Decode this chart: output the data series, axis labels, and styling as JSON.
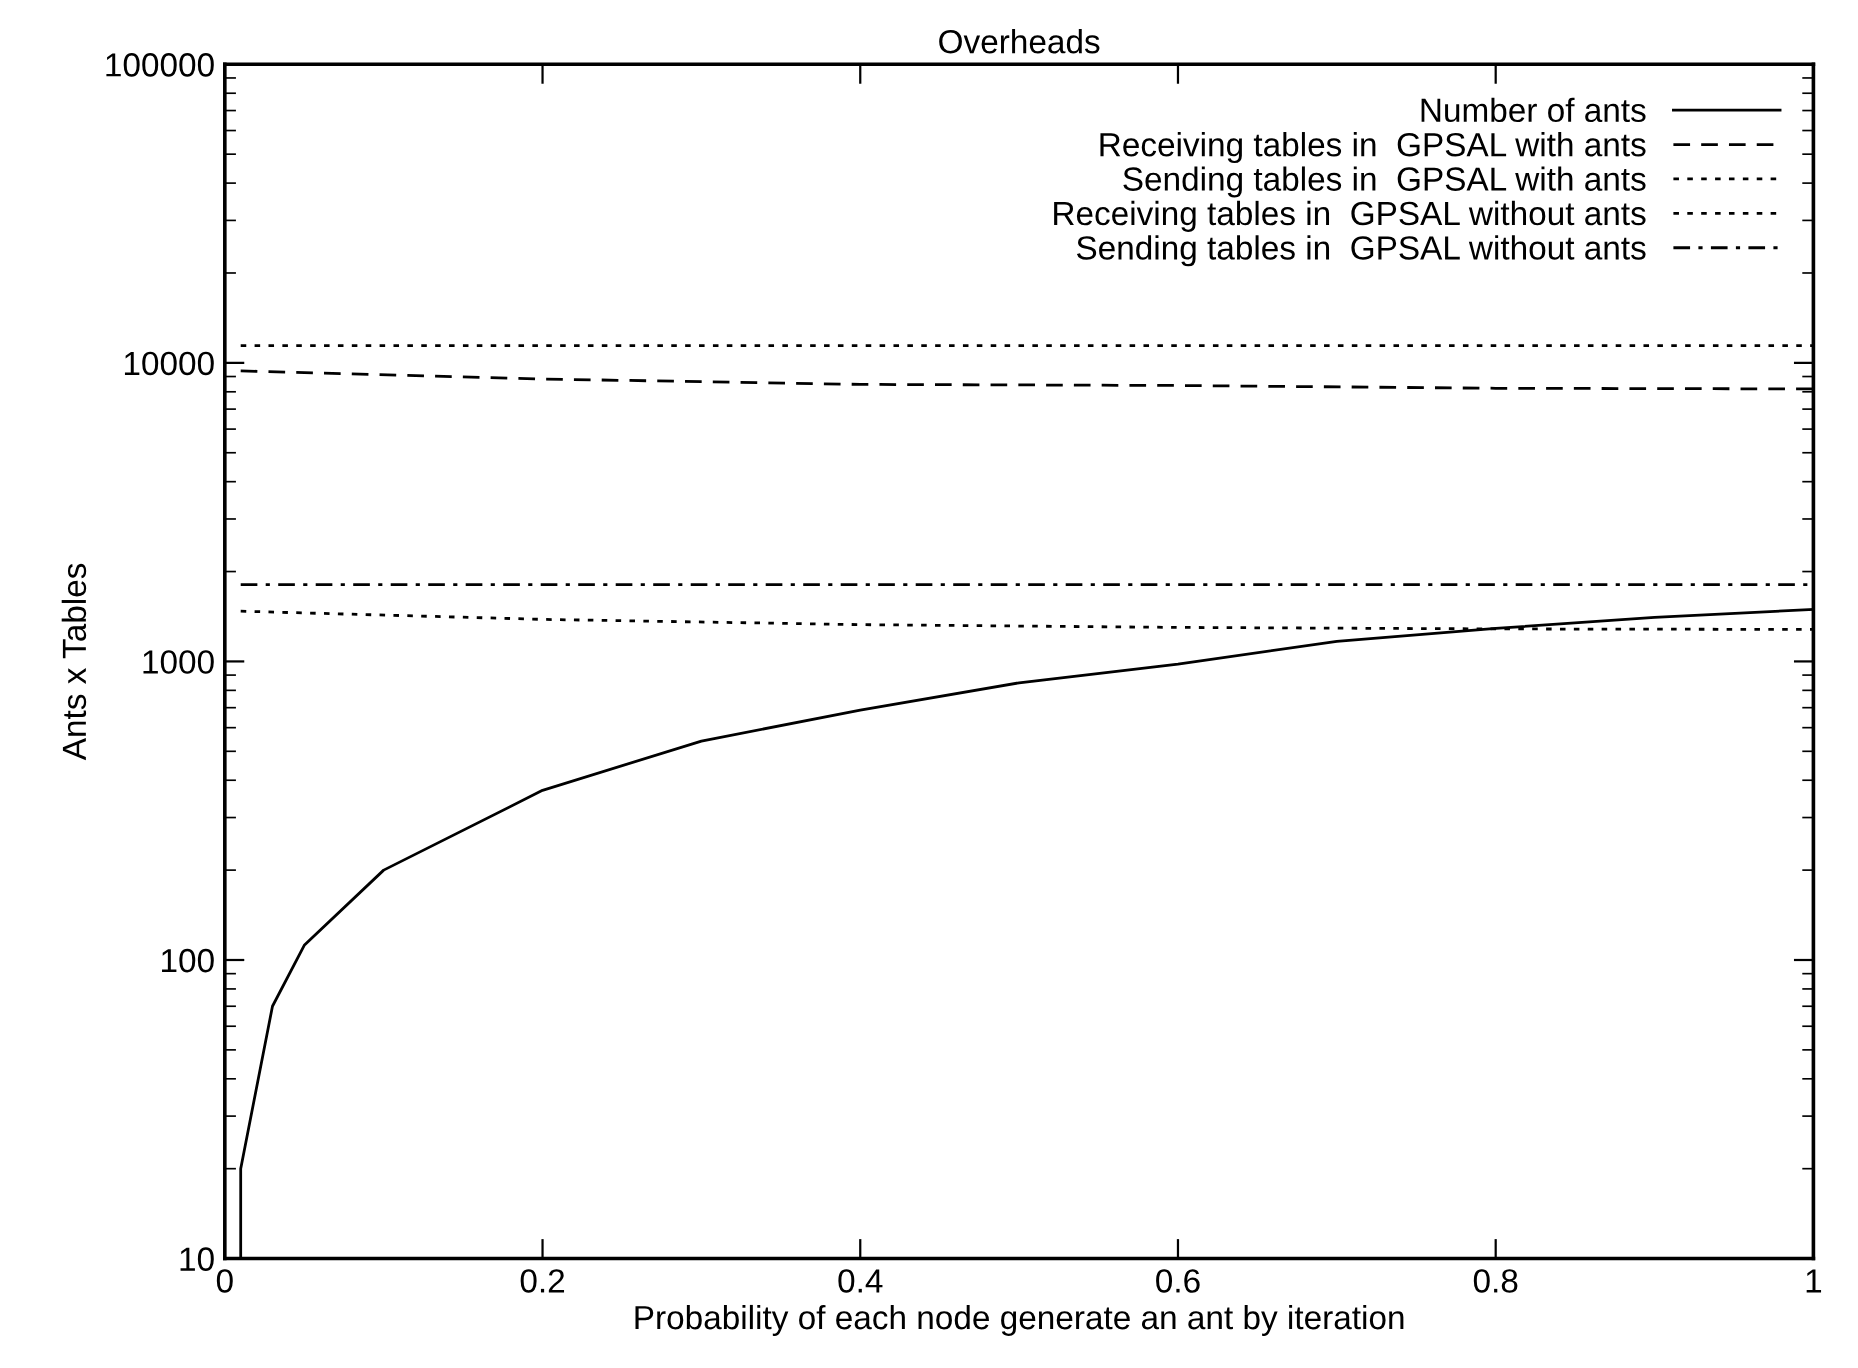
{
  "chart_data": {
    "type": "line",
    "title": "Overheads",
    "xlabel": "Probability of each node generate an ant by iteration",
    "ylabel": "Ants x Tables",
    "log": "y",
    "xlim": [
      0,
      1
    ],
    "ylim": [
      10,
      100000
    ],
    "xticks": [
      0,
      0.2,
      0.4,
      0.6,
      0.8,
      1
    ],
    "yticks": [
      10,
      100,
      1000,
      10000,
      100000
    ],
    "grid": false,
    "legend": "top right",
    "series": [
      {
        "name": "Number of ants",
        "color": "#000000",
        "line_style": "solid",
        "x": [
          0.01,
          0.01,
          0.03,
          0.05,
          0.1,
          0.2,
          0.3,
          0.4,
          0.5,
          0.6,
          0.7,
          0.8,
          0.9,
          1.0
        ],
        "values": [
          10,
          20,
          70,
          112,
          200,
          370,
          541,
          687,
          848,
          980,
          1167,
          1290,
          1405,
          1494
        ]
      },
      {
        "name": "Receiving tables in  GPSAL with ants",
        "color": "#000000",
        "line_style": "dashed",
        "x": [
          0.01,
          0.2,
          0.4,
          0.6,
          0.8,
          1.0
        ],
        "values": [
          9400,
          8830,
          8470,
          8400,
          8220,
          8180
        ]
      },
      {
        "name": "Sending tables in  GPSAL with ants",
        "color": "#000000",
        "line_style": "dotted",
        "x": [
          0.01,
          0.2,
          0.4,
          0.6,
          0.8,
          1.0
        ],
        "values": [
          1473,
          1383,
          1328,
          1300,
          1285,
          1280
        ]
      },
      {
        "name": "Receiving tables in  GPSAL without ants",
        "color": "#000000",
        "line_style": "dotted",
        "x": [
          0.01,
          1.0
        ],
        "values": [
          11430,
          11430
        ]
      },
      {
        "name": "Sending tables in  GPSAL without ants",
        "color": "#000000",
        "line_style": "dashdot",
        "x": [
          0.01,
          1.0
        ],
        "values": [
          1807,
          1807
        ]
      }
    ]
  }
}
